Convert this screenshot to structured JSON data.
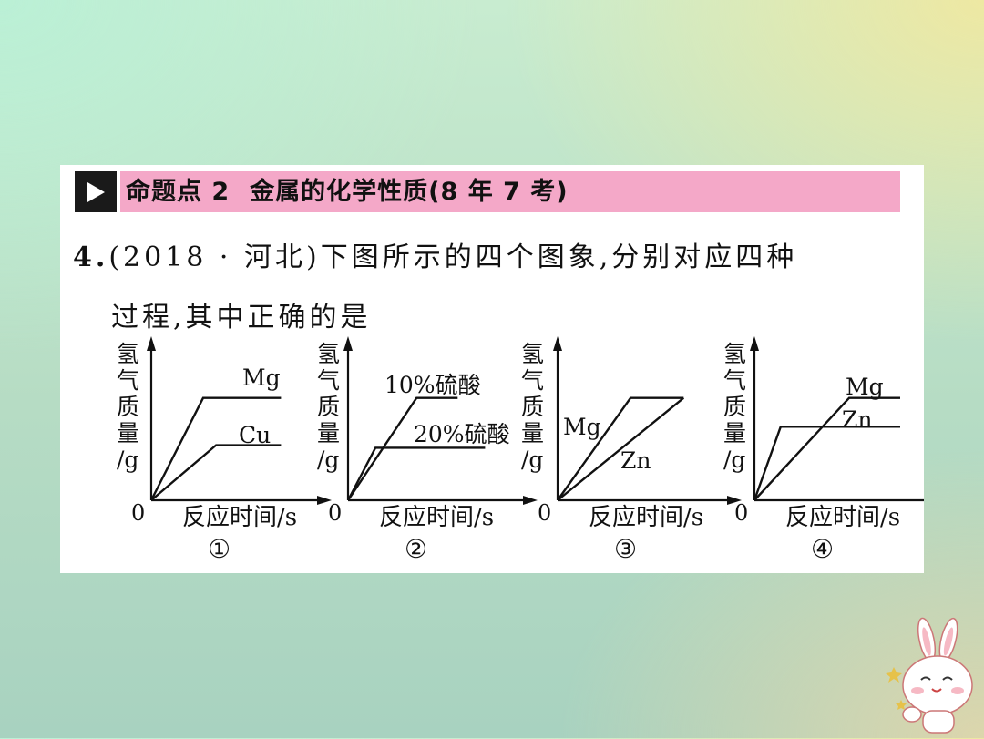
{
  "header": {
    "label": "命题点 2",
    "title": "金属的化学性质(8 年 7 考)",
    "accent": "#f4a8c8"
  },
  "question": {
    "number": "4.",
    "source": "(2018 · 河北)",
    "line1": "下图所示的四个图象,分别对应四种",
    "line2": "过程,其中正确的是"
  },
  "chart_data": [
    {
      "type": "line",
      "ylabel": "氢气质量/g",
      "xlabel": "反应时间/s",
      "origin_label": "0",
      "caption": "①",
      "series": [
        {
          "name": "Mg",
          "x": [
            0,
            0.4,
            1.0
          ],
          "y": [
            0,
            0.78,
            0.78
          ]
        },
        {
          "name": "Cu",
          "x": [
            0,
            0.5,
            1.0
          ],
          "y": [
            0,
            0.42,
            0.42
          ]
        }
      ],
      "xlim": [
        0,
        1.25
      ],
      "ylim": [
        0,
        1.0
      ]
    },
    {
      "type": "line",
      "ylabel": "氢气质量/g",
      "xlabel": "反应时间/s",
      "origin_label": "0",
      "caption": "②",
      "series": [
        {
          "name": "10%硫酸",
          "x": [
            0,
            0.5,
            0.8
          ],
          "y": [
            0,
            0.78,
            0.78
          ]
        },
        {
          "name": "20%硫酸",
          "x": [
            0,
            0.2,
            1.0
          ],
          "y": [
            0,
            0.4,
            0.4
          ]
        }
      ],
      "xlim": [
        0,
        1.25
      ],
      "ylim": [
        0,
        1.0
      ]
    },
    {
      "type": "line",
      "ylabel": "氢气质量/g",
      "xlabel": "反应时间/s",
      "origin_label": "0",
      "caption": "③",
      "series": [
        {
          "name": "Mg",
          "x": [
            0,
            0.55,
            0.95
          ],
          "y": [
            0,
            0.78,
            0.78
          ]
        },
        {
          "name": "Zn",
          "x": [
            0,
            0.95
          ],
          "y": [
            0,
            0.78
          ]
        }
      ],
      "xlim": [
        0,
        1.25
      ],
      "ylim": [
        0,
        1.0
      ]
    },
    {
      "type": "line",
      "ylabel": "氢气质量/g",
      "xlabel": "反应时间/s",
      "origin_label": "0",
      "caption": "④",
      "series": [
        {
          "name": "Mg",
          "x": [
            0,
            0.65,
            1.0
          ],
          "y": [
            0,
            0.78,
            0.78
          ]
        },
        {
          "name": "Zn",
          "x": [
            0,
            0.18,
            1.0
          ],
          "y": [
            0,
            0.56,
            0.56
          ]
        }
      ],
      "xlim": [
        0,
        1.25
      ],
      "ylim": [
        0,
        1.0
      ]
    }
  ],
  "mascot_icon": "bunny-mascot-icon"
}
